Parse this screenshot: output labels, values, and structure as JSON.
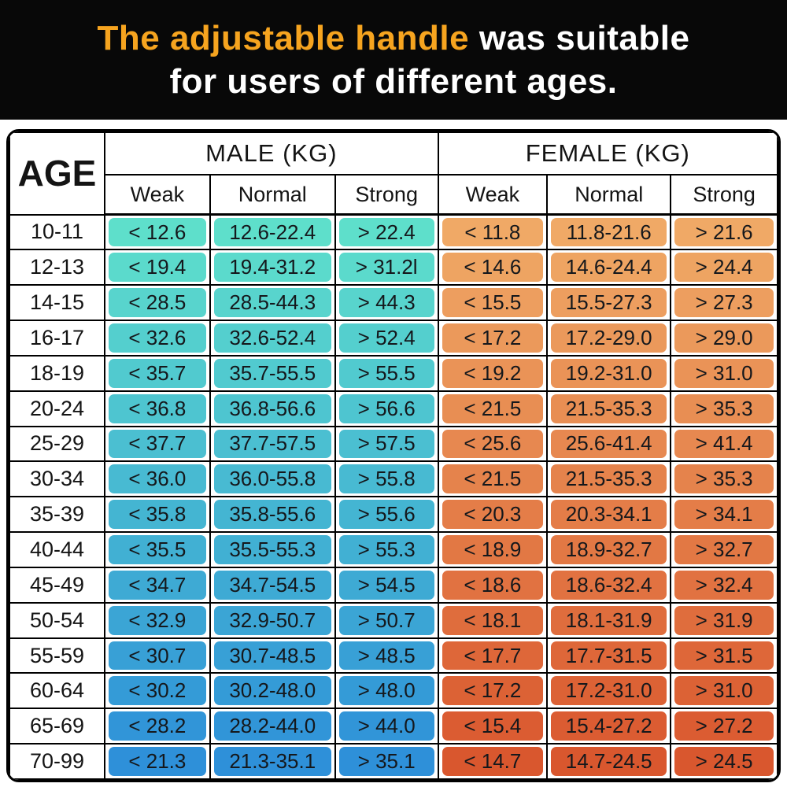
{
  "banner": {
    "highlight": "The adjustable handle",
    "rest": " was suitable",
    "line2": "for users of different ages.",
    "highlight_color": "#F6A41F",
    "text_color": "#FFFFFF",
    "bg_color": "#080808"
  },
  "chart_data": {
    "type": "table",
    "title": "The adjustable handle was suitable for users of different ages.",
    "col_groups": [
      {
        "label": "AGE",
        "sub": []
      },
      {
        "label": "MALE (KG)",
        "sub": [
          "Weak",
          "Normal",
          "Strong"
        ]
      },
      {
        "label": "FEMALE (KG)",
        "sub": [
          "Weak",
          "Normal",
          "Strong"
        ]
      }
    ],
    "male_gradient": [
      "#5EDFCB",
      "#2E90D9"
    ],
    "female_gradient": [
      "#F0A966",
      "#D9572E"
    ],
    "border_color": "#000000",
    "rows": [
      {
        "age": "10-11",
        "male": [
          "< 12.6",
          "12.6-22.4",
          "> 22.4"
        ],
        "female": [
          "< 11.8",
          "11.8-21.6",
          "> 21.6"
        ]
      },
      {
        "age": "12-13",
        "male": [
          "< 19.4",
          "19.4-31.2",
          "> 31.2l"
        ],
        "female": [
          "< 14.6",
          "14.6-24.4",
          "> 24.4"
        ]
      },
      {
        "age": "14-15",
        "male": [
          "< 28.5",
          "28.5-44.3",
          "> 44.3"
        ],
        "female": [
          "< 15.5",
          "15.5-27.3",
          "> 27.3"
        ]
      },
      {
        "age": "16-17",
        "male": [
          "< 32.6",
          "32.6-52.4",
          "> 52.4"
        ],
        "female": [
          "< 17.2",
          "17.2-29.0",
          "> 29.0"
        ]
      },
      {
        "age": "18-19",
        "male": [
          "< 35.7",
          "35.7-55.5",
          "> 55.5"
        ],
        "female": [
          "< 19.2",
          "19.2-31.0",
          "> 31.0"
        ]
      },
      {
        "age": "20-24",
        "male": [
          "< 36.8",
          "36.8-56.6",
          "> 56.6"
        ],
        "female": [
          "< 21.5",
          "21.5-35.3",
          "> 35.3"
        ]
      },
      {
        "age": "25-29",
        "male": [
          "< 37.7",
          "37.7-57.5",
          "> 57.5"
        ],
        "female": [
          "< 25.6",
          "25.6-41.4",
          "> 41.4"
        ]
      },
      {
        "age": "30-34",
        "male": [
          "< 36.0",
          "36.0-55.8",
          "> 55.8"
        ],
        "female": [
          "< 21.5",
          "21.5-35.3",
          "> 35.3"
        ]
      },
      {
        "age": "35-39",
        "male": [
          "< 35.8",
          "35.8-55.6",
          "> 55.6"
        ],
        "female": [
          "< 20.3",
          "20.3-34.1",
          "> 34.1"
        ]
      },
      {
        "age": "40-44",
        "male": [
          "< 35.5",
          "35.5-55.3",
          "> 55.3"
        ],
        "female": [
          "< 18.9",
          "18.9-32.7",
          "> 32.7"
        ]
      },
      {
        "age": "45-49",
        "male": [
          "< 34.7",
          "34.7-54.5",
          "> 54.5"
        ],
        "female": [
          "< 18.6",
          "18.6-32.4",
          "> 32.4"
        ]
      },
      {
        "age": "50-54",
        "male": [
          "< 32.9",
          "32.9-50.7",
          "> 50.7"
        ],
        "female": [
          "< 18.1",
          "18.1-31.9",
          "> 31.9"
        ]
      },
      {
        "age": "55-59",
        "male": [
          "< 30.7",
          "30.7-48.5",
          "> 48.5"
        ],
        "female": [
          "< 17.7",
          "17.7-31.5",
          "> 31.5"
        ]
      },
      {
        "age": "60-64",
        "male": [
          "< 30.2",
          "30.2-48.0",
          "> 48.0"
        ],
        "female": [
          "< 17.2",
          "17.2-31.0",
          "> 31.0"
        ]
      },
      {
        "age": "65-69",
        "male": [
          "< 28.2",
          "28.2-44.0",
          "> 44.0"
        ],
        "female": [
          "< 15.4",
          "15.4-27.2",
          "> 27.2"
        ]
      },
      {
        "age": "70-99",
        "male": [
          "< 21.3",
          "21.3-35.1",
          "> 35.1"
        ],
        "female": [
          "< 14.7",
          "14.7-24.5",
          "> 24.5"
        ]
      }
    ]
  }
}
